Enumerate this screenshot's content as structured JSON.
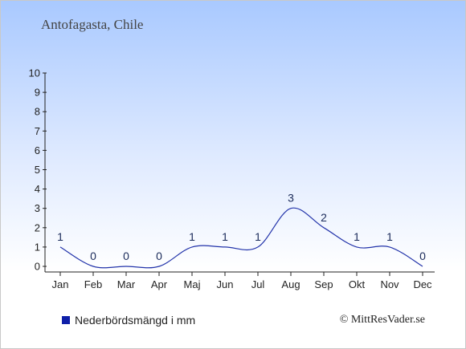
{
  "location_title": "Antofagasta, Chile",
  "credit": "© MittResVader.se",
  "colors": {
    "line": "#2233aa",
    "legend_swatch": "#0f1fa8",
    "axis": "#222222",
    "label_text": "#1a2a5a"
  },
  "chart_data": {
    "type": "line",
    "title": "",
    "xlabel": "",
    "ylabel": "",
    "categories": [
      "Jan",
      "Feb",
      "Mar",
      "Apr",
      "Maj",
      "Jun",
      "Jul",
      "Aug",
      "Sep",
      "Okt",
      "Nov",
      "Dec"
    ],
    "series": [
      {
        "name": "Nederbördsmängd i mm",
        "values": [
          1,
          0,
          0,
          0,
          1,
          1,
          1,
          3,
          2,
          1,
          1,
          0
        ]
      }
    ],
    "ylim": [
      0,
      10
    ],
    "yticks": [
      0,
      1,
      2,
      3,
      4,
      5,
      6,
      7,
      8,
      9,
      10
    ],
    "grid": false,
    "legend": "bottom-left"
  }
}
